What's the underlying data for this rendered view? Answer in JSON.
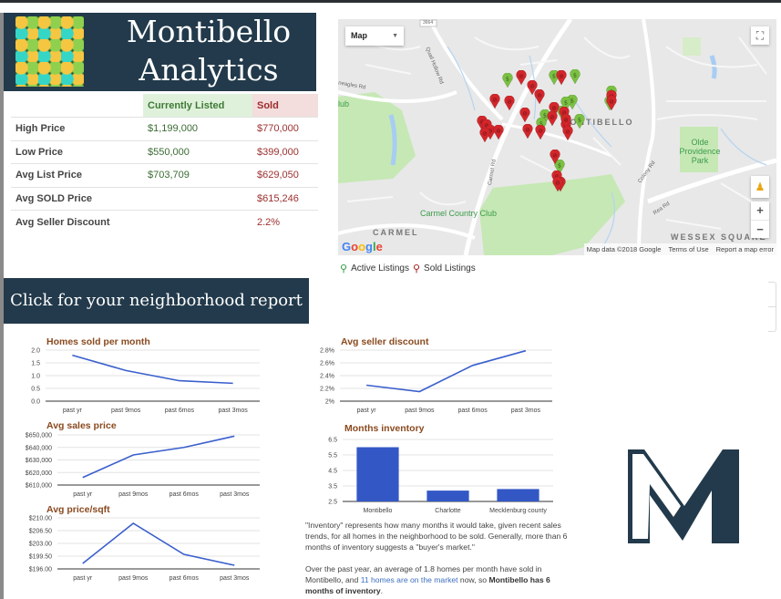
{
  "header": {
    "title_line1": "Montibello",
    "title_line2": "Analytics",
    "logo_icon": "houses-pattern-icon"
  },
  "stats_table": {
    "columns": [
      "",
      "Currently Listed",
      "Sold"
    ],
    "rows": [
      {
        "label": "High Price",
        "listed": "$1,199,000",
        "sold": "$770,000"
      },
      {
        "label": "Low Price",
        "listed": "$550,000",
        "sold": "$399,000"
      },
      {
        "label": "Avg List Price",
        "listed": "$703,709",
        "sold": "$629,050"
      },
      {
        "label": "Avg SOLD Price",
        "listed": "",
        "sold": "$615,246"
      },
      {
        "label": "Avg Seller Discount",
        "listed": "",
        "sold": "2.2%"
      }
    ],
    "colors": {
      "listed_bg": "#dff1db",
      "listed_text": "#3e7a35",
      "sold_bg": "#f3dddd",
      "sold_text": "#9d2b2b"
    }
  },
  "map": {
    "type_select": "Map",
    "fullscreen_icon": "fullscreen-icon",
    "pegman_icon": "pegman-icon",
    "zoom_in": "+",
    "zoom_out": "−",
    "labels": {
      "montibello": "MONTIBELLO",
      "carmel": "CARMEL",
      "wessex": "WESSEX SQUARE",
      "park": "Olde Providence Park",
      "club": "Carmel Country Club",
      "club_left": "lub",
      "quail": "Quail Hollow Rd",
      "eagles": "neagles Rd",
      "carmel_rd": "Carmel Rd",
      "colony": "Colony Rd",
      "rea": "Rea Rd",
      "route": "3664"
    },
    "brand": "Google",
    "attribution": [
      "Map data ©2018 Google",
      "Terms of Use",
      "Report a map error"
    ],
    "active_markers": [
      [
        186,
        67
      ],
      [
        237,
        64
      ],
      [
        260,
        63
      ],
      [
        246,
        103
      ],
      [
        265,
        112
      ],
      [
        257,
        91
      ],
      [
        300,
        81
      ],
      [
        298,
        92
      ],
      [
        227,
        107
      ],
      [
        223,
        116
      ],
      [
        250,
        93
      ],
      [
        243,
        162
      ]
    ],
    "sold_markers": [
      [
        201,
        64
      ],
      [
        213,
        75
      ],
      [
        245,
        64
      ],
      [
        221,
        85
      ],
      [
        237,
        99
      ],
      [
        235,
        109
      ],
      [
        205,
        105
      ],
      [
        172,
        90
      ],
      [
        188,
        92
      ],
      [
        158,
        114
      ],
      [
        163,
        118
      ],
      [
        167,
        124
      ],
      [
        161,
        127
      ],
      [
        176,
        124
      ],
      [
        208,
        123
      ],
      [
        222,
        124
      ],
      [
        248,
        104
      ],
      [
        250,
        118
      ],
      [
        238,
        151
      ],
      [
        240,
        174
      ],
      [
        244,
        181
      ],
      [
        250,
        112
      ],
      [
        252,
        125
      ],
      [
        241,
        181
      ],
      [
        300,
        86
      ],
      [
        300,
        92
      ]
    ]
  },
  "legend": {
    "active_label": "Active Listings",
    "sold_label": "Sold Listings",
    "active_color": "#2e9b3f",
    "sold_color": "#a11b1b"
  },
  "cta": {
    "label": "Click for your neighborhood report"
  },
  "chart_data": [
    {
      "type": "line",
      "title": "Homes sold per month",
      "categories": [
        "past yr",
        "past 9mos",
        "past 6mos",
        "past 3mos"
      ],
      "values": [
        1.8,
        1.2,
        0.8,
        0.7
      ],
      "yticks": [
        "2.0",
        "1.5",
        "1.0",
        "0.5",
        "0.0"
      ],
      "ylim": [
        0,
        2.0
      ],
      "grid": true
    },
    {
      "type": "line",
      "title": "Avg sales price",
      "categories": [
        "past yr",
        "past 9mos",
        "past 6mos",
        "past 3mos"
      ],
      "values": [
        616000,
        634000,
        640000,
        649000
      ],
      "yticks": [
        "$650,000",
        "$640,000",
        "$630,000",
        "$620,000",
        "$610,000"
      ],
      "ylim": [
        610000,
        650000
      ],
      "grid": true
    },
    {
      "type": "line",
      "title": "Avg price/sqft",
      "categories": [
        "past yr",
        "past 9mos",
        "past 6mos",
        "past 3mos"
      ],
      "values": [
        197.5,
        208.5,
        200.0,
        197.0
      ],
      "yticks": [
        "$210.00",
        "$206.50",
        "$203.00",
        "$199.50",
        "$196.00"
      ],
      "ylim": [
        196,
        210
      ],
      "grid": true
    },
    {
      "type": "line",
      "title": "Avg seller discount",
      "categories": [
        "past yr",
        "past 9mos",
        "past 6mos",
        "past 3mos"
      ],
      "values": [
        2.25,
        2.15,
        2.56,
        2.79
      ],
      "yticks": [
        "2.8%",
        "2.6%",
        "2.4%",
        "2.2%",
        "2%"
      ],
      "ylim": [
        2.0,
        2.8
      ],
      "grid": true
    },
    {
      "type": "bar",
      "title": "Months inventory",
      "categories": [
        "Montibello",
        "Charlotte",
        "Mecklenburg county"
      ],
      "values": [
        6.0,
        3.2,
        3.3
      ],
      "yticks": [
        "6.5",
        "5.5",
        "4.5",
        "3.5",
        "2.5"
      ],
      "ylim": [
        2.5,
        6.5
      ],
      "grid": true
    }
  ],
  "note": {
    "p1": "\"Inventory\" represents how many months it would take, given recent sales trends, for all homes in the neighborhood to be sold. Generally, more than 6 months of inventory suggests a \"buyer's market.\"",
    "p2_a": "Over the past year, an average of 1.8 homes per month have sold in Montibello, and ",
    "p2_link": "11 homes are on the market",
    "p2_b": " now, so ",
    "p2_bold": "Montibello has 6 months of inventory",
    "p2_end": "."
  },
  "brand_logo": {
    "icon": "m-logo-icon",
    "color": "#223a4b"
  },
  "colors": {
    "navy": "#223a4b",
    "line": "#3a5fcd",
    "bar": "#3358c6",
    "chart_title": "#8a4a1f"
  }
}
